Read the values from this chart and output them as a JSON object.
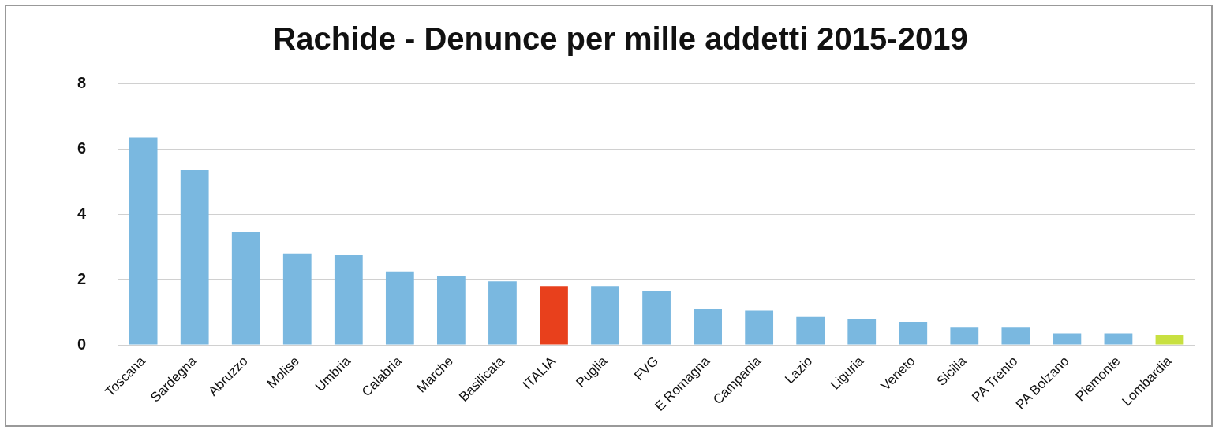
{
  "chart_data": {
    "type": "bar",
    "title": "Rachide - Denunce per mille addetti 2015-2019",
    "categories": [
      "Toscana",
      "Sardegna",
      "Abruzzo",
      "Molise",
      "Umbria",
      "Calabria",
      "Marche",
      "Basilicata",
      "ITALIA",
      "Puglia",
      "FVG",
      "E Romagna",
      "Campania",
      "Lazio",
      "Liguria",
      "Veneto",
      "Sicilia",
      "PA Trento",
      "PA Bolzano",
      "Piemonte",
      "Lombardia"
    ],
    "values": [
      6.35,
      5.35,
      3.45,
      2.8,
      2.75,
      2.25,
      2.1,
      1.95,
      1.8,
      1.8,
      1.65,
      1.1,
      1.05,
      0.85,
      0.8,
      0.7,
      0.55,
      0.55,
      0.35,
      0.35,
      0.3
    ],
    "colors": [
      "#7ab8e0",
      "#7ab8e0",
      "#7ab8e0",
      "#7ab8e0",
      "#7ab8e0",
      "#7ab8e0",
      "#7ab8e0",
      "#7ab8e0",
      "#e8401c",
      "#7ab8e0",
      "#7ab8e0",
      "#7ab8e0",
      "#7ab8e0",
      "#7ab8e0",
      "#7ab8e0",
      "#7ab8e0",
      "#7ab8e0",
      "#7ab8e0",
      "#7ab8e0",
      "#7ab8e0",
      "#c8e040"
    ],
    "ylim": [
      0,
      8
    ],
    "yticks": [
      0,
      2,
      4,
      6,
      8
    ],
    "grid": "y",
    "legend": false
  }
}
